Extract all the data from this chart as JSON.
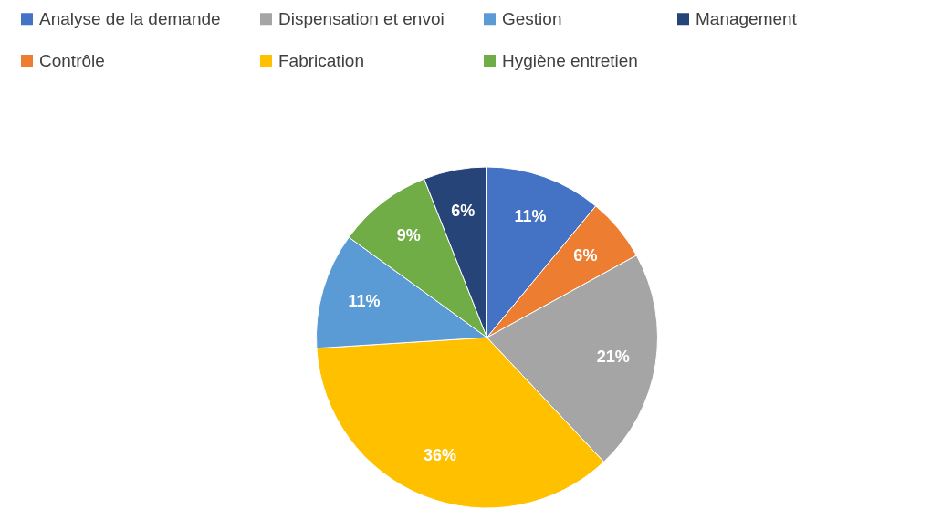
{
  "chart_data": {
    "type": "pie",
    "categories": [
      "Analyse de la demande",
      "Contrôle",
      "Dispensation et envoi",
      "Fabrication",
      "Gestion",
      "Hygiène entretien",
      "Management"
    ],
    "values": [
      11,
      6,
      21,
      36,
      11,
      9,
      6
    ],
    "value_labels": [
      "11%",
      "6%",
      "21%",
      "36%",
      "11%",
      "9%",
      "6%"
    ],
    "colors": [
      "#4472c4",
      "#ed7d31",
      "#a5a5a5",
      "#ffc000",
      "#5b9bd5",
      "#70ad47",
      "#264478"
    ],
    "legend": "top"
  }
}
